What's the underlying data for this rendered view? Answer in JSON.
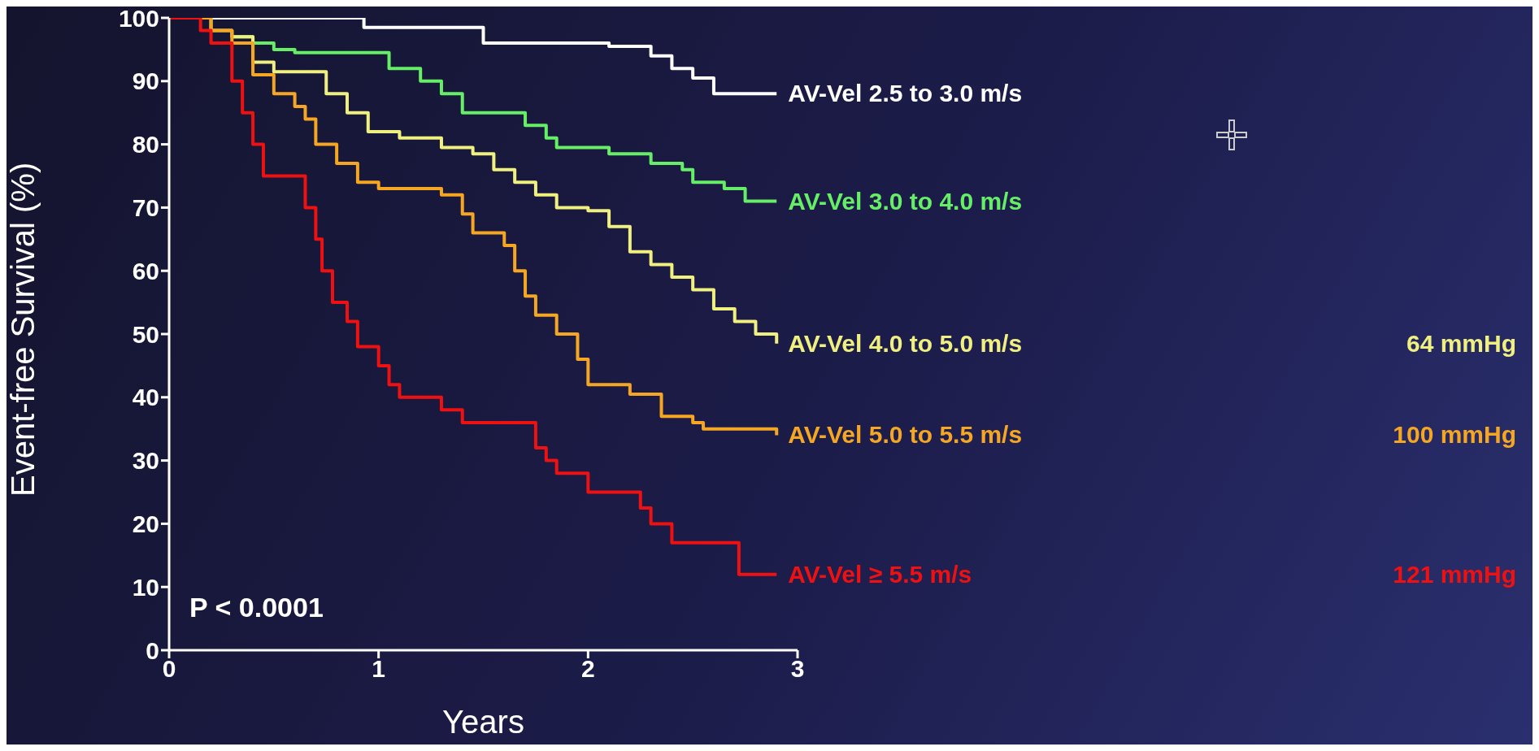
{
  "chart_data": {
    "type": "step",
    "ylabel": "Event-free Survival (%)",
    "xlabel": "Years",
    "xlim": [
      0,
      3
    ],
    "xticks": [
      0,
      1,
      2,
      3
    ],
    "ylim": [
      0,
      100
    ],
    "yticks": [
      0,
      10,
      20,
      30,
      40,
      50,
      60,
      70,
      80,
      90,
      100
    ],
    "grid": false,
    "legend": false,
    "marker": "none",
    "line_style": "solid",
    "annotations": [
      "P < 0.0001",
      "64 mmHg",
      "100 mmHg",
      "121 mmHg"
    ],
    "series": [
      {
        "name": "AV-Vel 2.5 to 3.0 m/s",
        "color": "#ffffff",
        "x": [
          0,
          0.93,
          1.5,
          2.1,
          2.3,
          2.4,
          2.5,
          2.6,
          2.9
        ],
        "values": [
          100,
          98.5,
          96,
          95.5,
          94,
          92,
          90.5,
          88,
          88
        ]
      },
      {
        "name": "AV-Vel 3.0 to 4.0 m/s",
        "color": "#66ee66",
        "x": [
          0.3,
          0.4,
          0.5,
          0.6,
          1.05,
          1.2,
          1.3,
          1.4,
          1.7,
          1.8,
          1.85,
          2.1,
          2.3,
          2.45,
          2.5,
          2.65,
          2.75,
          2.9
        ],
        "values": [
          97,
          96,
          95,
          94.5,
          92,
          90,
          88,
          85,
          83,
          81,
          79.5,
          78.5,
          77,
          76,
          74,
          73,
          71,
          71
        ]
      },
      {
        "name": "AV-Vel 4.0 to 5.0 m/s",
        "color": "#f0f080",
        "x": [
          0,
          0.2,
          0.3,
          0.4,
          0.5,
          0.75,
          0.85,
          0.95,
          1.1,
          1.3,
          1.45,
          1.55,
          1.65,
          1.75,
          1.85,
          2.0,
          2.1,
          2.2,
          2.3,
          2.4,
          2.5,
          2.6,
          2.7,
          2.8,
          2.9
        ],
        "values": [
          100,
          98,
          97,
          93,
          91.5,
          88,
          85,
          82,
          81,
          79.5,
          78.5,
          76,
          74,
          72,
          70,
          69.5,
          67,
          63,
          61,
          59,
          57,
          54,
          52,
          50,
          48.5
        ]
      },
      {
        "name": "AV-Vel 5.0 to 5.5 m/s",
        "color": "#f5a623",
        "x": [
          0,
          0.2,
          0.3,
          0.4,
          0.5,
          0.6,
          0.65,
          0.7,
          0.8,
          0.9,
          1.0,
          1.3,
          1.4,
          1.45,
          1.6,
          1.65,
          1.7,
          1.75,
          1.85,
          1.95,
          2.0,
          2.2,
          2.35,
          2.5,
          2.55,
          2.9
        ],
        "values": [
          100,
          98,
          96,
          91,
          88,
          86,
          84,
          80,
          77,
          74,
          73,
          72,
          69,
          66,
          64,
          60,
          56,
          53,
          50,
          46,
          42,
          40.5,
          37,
          36,
          35,
          34
        ]
      },
      {
        "name": "AV-Vel ≥ 5.5 m/s",
        "color": "#ee1111",
        "x": [
          0,
          0.15,
          0.2,
          0.3,
          0.35,
          0.4,
          0.45,
          0.65,
          0.7,
          0.73,
          0.78,
          0.85,
          0.9,
          1.0,
          1.05,
          1.1,
          1.3,
          1.4,
          1.75,
          1.8,
          1.85,
          2.0,
          2.25,
          2.3,
          2.4,
          2.72,
          2.9
        ],
        "values": [
          100,
          98,
          96,
          90,
          85,
          80,
          75,
          70,
          65,
          60,
          55,
          52,
          48,
          45,
          42,
          40,
          38,
          36,
          32,
          30,
          28,
          25,
          22.5,
          20,
          17,
          12,
          12
        ]
      }
    ]
  }
}
